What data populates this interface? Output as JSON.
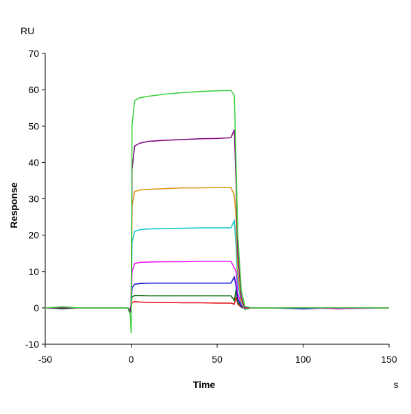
{
  "chart_data": {
    "type": "line",
    "y_unit_label": "RU",
    "ylabel": "Response",
    "xlabel": "Time",
    "x_unit_label": "s",
    "x": [
      -50,
      -40,
      -30,
      -20,
      -10,
      -2,
      -0.5,
      0,
      0.5,
      2,
      5,
      10,
      20,
      30,
      40,
      50,
      58,
      60,
      61,
      62,
      64,
      66,
      70,
      80,
      100,
      120,
      150
    ],
    "xlim": [
      -50,
      150
    ],
    "xticks": [
      -50,
      0,
      50,
      100,
      150
    ],
    "ylim": [
      -10,
      70
    ],
    "yticks": [
      -10,
      0,
      10,
      20,
      30,
      40,
      50,
      60,
      70
    ],
    "grid": false,
    "series": [
      {
        "color": "#e8141e",
        "values": [
          0,
          0,
          0,
          0,
          0,
          0,
          -0.5,
          0.5,
          1.5,
          1.7,
          1.6,
          1.5,
          1.5,
          1.4,
          1.4,
          1.3,
          1.3,
          1,
          3,
          1,
          0.2,
          -0.2,
          0,
          0,
          0,
          0,
          0
        ]
      },
      {
        "color": "#0a6a0a",
        "values": [
          0,
          -0.3,
          0,
          0,
          0,
          0,
          -0.5,
          1,
          3,
          3.4,
          3.4,
          3.3,
          3.3,
          3.3,
          3.3,
          3.3,
          3.3,
          2,
          5,
          1.5,
          0.3,
          -0.2,
          0,
          0,
          -0.2,
          0,
          0
        ]
      },
      {
        "color": "#1414d2",
        "values": [
          0,
          0,
          0,
          0,
          0,
          0,
          -1,
          1,
          5.5,
          6.5,
          6.7,
          6.8,
          6.8,
          6.8,
          6.8,
          6.8,
          6.8,
          8.5,
          6,
          2.5,
          0.5,
          -0.3,
          0,
          0,
          -0.3,
          0,
          0
        ]
      },
      {
        "color": "#f014f0",
        "values": [
          0,
          0,
          0,
          0,
          0,
          0,
          -1,
          1,
          10,
          12.2,
          12.5,
          12.6,
          12.7,
          12.7,
          12.8,
          12.8,
          12.8,
          11,
          10,
          4,
          1,
          -0.3,
          0,
          0,
          0,
          -0.3,
          0
        ]
      },
      {
        "color": "#14c8c8",
        "values": [
          0,
          0,
          0,
          0,
          0,
          0,
          -1,
          1,
          18,
          21,
          21.5,
          21.7,
          21.8,
          21.9,
          22,
          22,
          22,
          24,
          17,
          7,
          1.5,
          -0.5,
          0,
          0,
          0,
          0,
          0
        ]
      },
      {
        "color": "#dc9614",
        "values": [
          0,
          0,
          0,
          0,
          0,
          0,
          -1,
          1,
          28,
          32,
          32.4,
          32.6,
          32.8,
          33,
          33,
          33.1,
          33.1,
          31,
          25,
          10,
          2,
          -0.3,
          0,
          0,
          0,
          0,
          0
        ]
      },
      {
        "color": "#820a82",
        "values": [
          0,
          0,
          0,
          0,
          0,
          0,
          -1,
          1,
          38,
          44.5,
          45.3,
          45.8,
          46.1,
          46.3,
          46.5,
          46.6,
          46.8,
          49,
          35,
          15,
          3,
          0,
          0,
          0,
          0,
          0,
          0
        ]
      },
      {
        "color": "#3cd23c",
        "values": [
          0,
          0.3,
          0,
          0,
          0,
          0,
          -2,
          -7,
          50,
          57,
          57.8,
          58.2,
          58.8,
          59.2,
          59.5,
          59.7,
          59.8,
          58.5,
          40,
          20,
          5,
          0.5,
          0,
          0,
          0,
          0,
          0
        ]
      }
    ]
  }
}
